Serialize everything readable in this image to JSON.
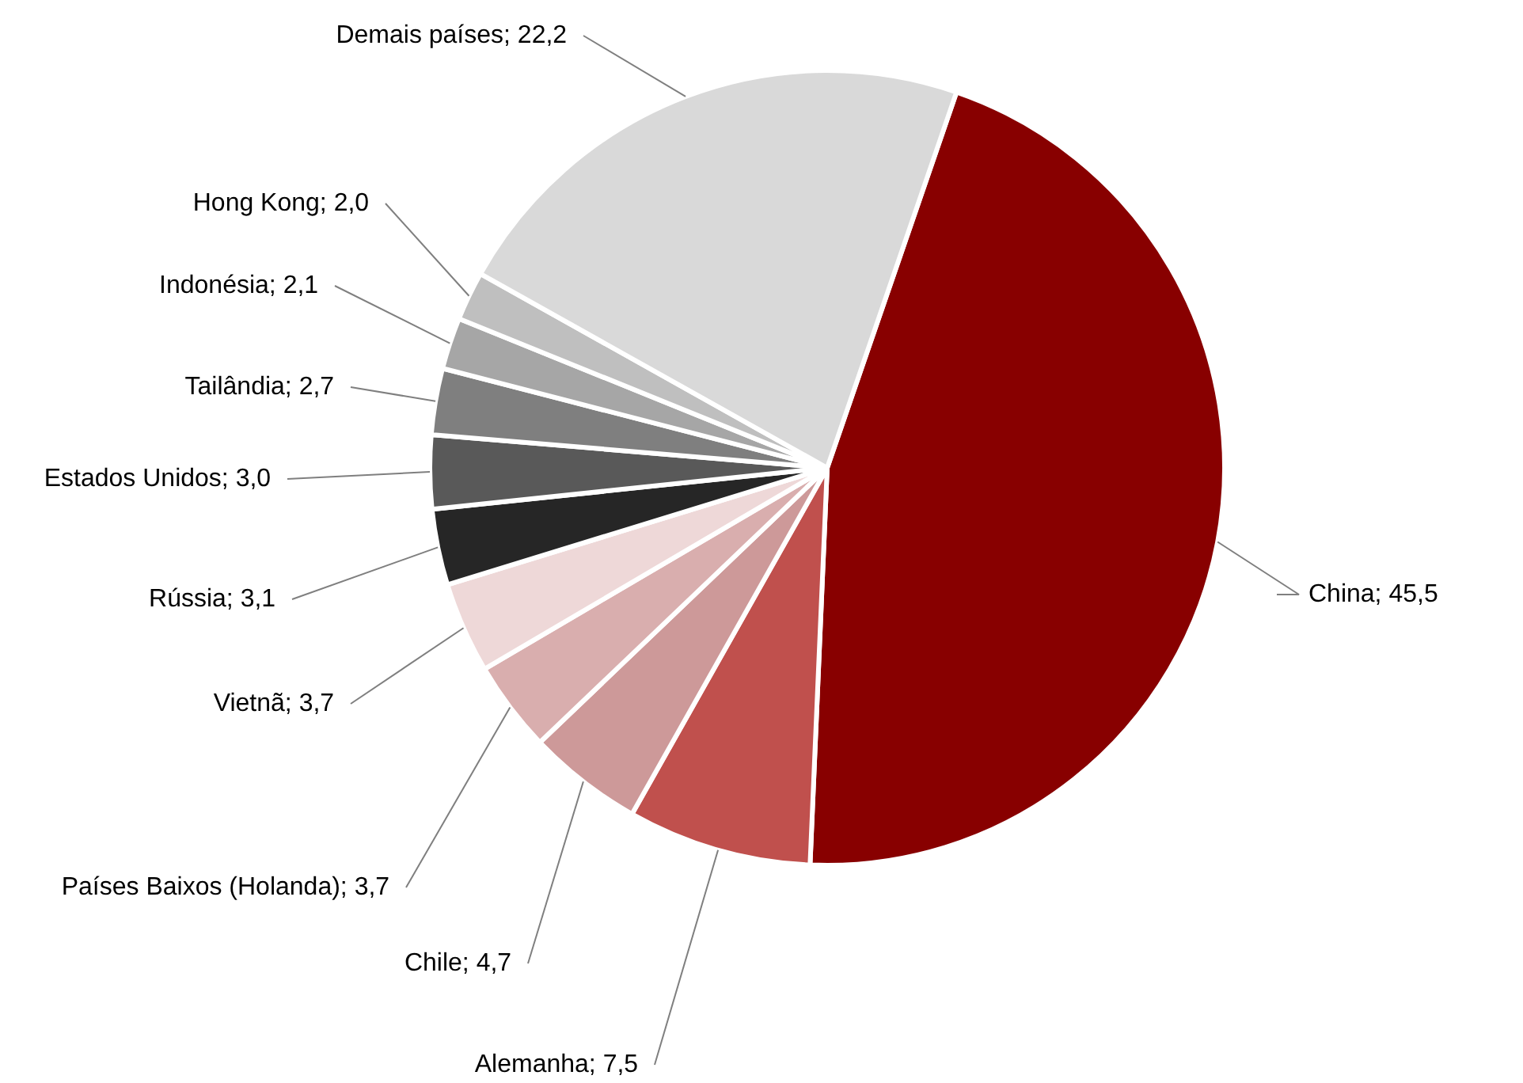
{
  "chart_data": {
    "type": "pie",
    "categories": [
      "China",
      "Alemanha",
      "Chile",
      "Países Baixos (Holanda)",
      "Vietnã",
      "Rússia",
      "Estados Unidos",
      "Tailândia",
      "Indonésia",
      "Hong Kong",
      "Demais países"
    ],
    "values": [
      45.5,
      7.5,
      4.7,
      3.7,
      3.7,
      3.1,
      3.0,
      2.7,
      2.1,
      2.0,
      22.2
    ],
    "value_labels": [
      "45,5",
      "7,5",
      "4,7",
      "3,7",
      "3,7",
      "3,1",
      "3,0",
      "2,7",
      "2,1",
      "2,0",
      "22,2"
    ],
    "colors": [
      "#880000",
      "#c0504d",
      "#cd9999",
      "#d9aeae",
      "#eed8d8",
      "#262626",
      "#595959",
      "#7f7f7f",
      "#a6a6a6",
      "#bfbfbf",
      "#d9d9d9"
    ],
    "legend": false
  }
}
